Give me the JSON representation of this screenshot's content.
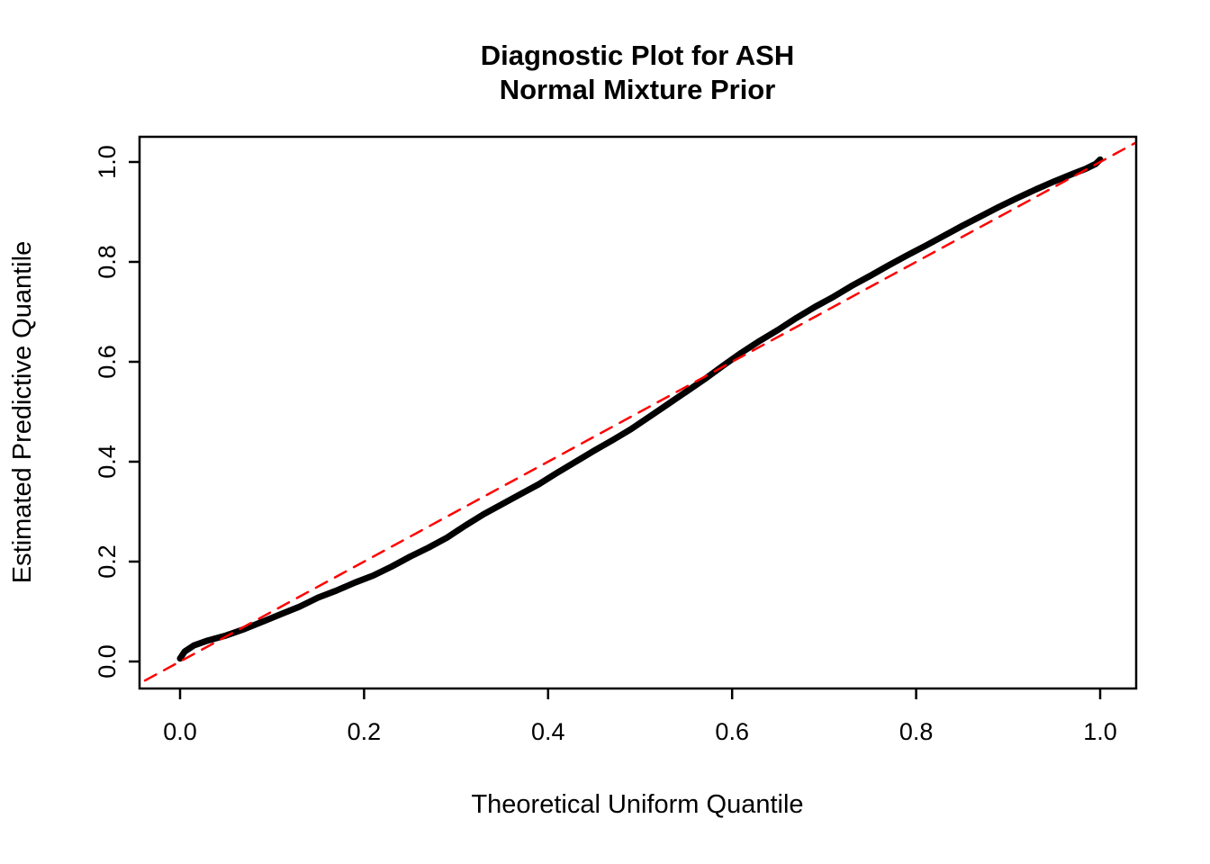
{
  "page": {
    "background_color": "#FFFFFF"
  },
  "chart_data": {
    "type": "scatter",
    "title_lines": [
      "Diagnostic Plot for ASH",
      "Normal Mixture Prior"
    ],
    "title": "Diagnostic Plot for ASH — Normal Mixture Prior",
    "xlabel": "Theoretical Uniform Quantile",
    "ylabel": "Estimated Predictive Quantile",
    "xlim": [
      -0.044,
      1.04
    ],
    "ylim": [
      -0.054,
      1.05
    ],
    "x_ticks": [
      0.0,
      0.2,
      0.4,
      0.6,
      0.8,
      1.0
    ],
    "y_ticks": [
      0.0,
      0.2,
      0.4,
      0.6,
      0.8,
      1.0
    ],
    "tick_decimals": 1,
    "grid": false,
    "legend": "none",
    "series": [
      {
        "name": "estimated-predictive-quantile-curve",
        "kind": "dense-points-curve",
        "color": "#000000",
        "stroke_width": 7,
        "dash": null,
        "points": [
          [
            0.0,
            0.006
          ],
          [
            0.005,
            0.02
          ],
          [
            0.015,
            0.032
          ],
          [
            0.03,
            0.042
          ],
          [
            0.05,
            0.052
          ],
          [
            0.07,
            0.065
          ],
          [
            0.09,
            0.08
          ],
          [
            0.11,
            0.095
          ],
          [
            0.13,
            0.11
          ],
          [
            0.15,
            0.128
          ],
          [
            0.17,
            0.142
          ],
          [
            0.19,
            0.158
          ],
          [
            0.21,
            0.172
          ],
          [
            0.23,
            0.19
          ],
          [
            0.25,
            0.21
          ],
          [
            0.27,
            0.228
          ],
          [
            0.29,
            0.248
          ],
          [
            0.31,
            0.272
          ],
          [
            0.33,
            0.295
          ],
          [
            0.35,
            0.315
          ],
          [
            0.37,
            0.335
          ],
          [
            0.39,
            0.355
          ],
          [
            0.41,
            0.378
          ],
          [
            0.43,
            0.4
          ],
          [
            0.45,
            0.422
          ],
          [
            0.47,
            0.443
          ],
          [
            0.49,
            0.465
          ],
          [
            0.51,
            0.49
          ],
          [
            0.53,
            0.515
          ],
          [
            0.55,
            0.54
          ],
          [
            0.57,
            0.565
          ],
          [
            0.59,
            0.592
          ],
          [
            0.61,
            0.618
          ],
          [
            0.63,
            0.642
          ],
          [
            0.65,
            0.664
          ],
          [
            0.67,
            0.688
          ],
          [
            0.69,
            0.71
          ],
          [
            0.71,
            0.73
          ],
          [
            0.73,
            0.752
          ],
          [
            0.75,
            0.772
          ],
          [
            0.77,
            0.793
          ],
          [
            0.79,
            0.813
          ],
          [
            0.81,
            0.832
          ],
          [
            0.83,
            0.852
          ],
          [
            0.85,
            0.872
          ],
          [
            0.87,
            0.891
          ],
          [
            0.89,
            0.91
          ],
          [
            0.91,
            0.928
          ],
          [
            0.93,
            0.945
          ],
          [
            0.95,
            0.961
          ],
          [
            0.97,
            0.976
          ],
          [
            0.985,
            0.987
          ],
          [
            0.995,
            0.996
          ],
          [
            1.0,
            1.005
          ]
        ]
      },
      {
        "name": "identity-reference-line",
        "kind": "dashed-line",
        "color": "#FF0000",
        "stroke_width": 2.5,
        "dash": "14 10",
        "points": [
          [
            -0.1,
            -0.1
          ],
          [
            1.1,
            1.1
          ]
        ]
      }
    ]
  }
}
